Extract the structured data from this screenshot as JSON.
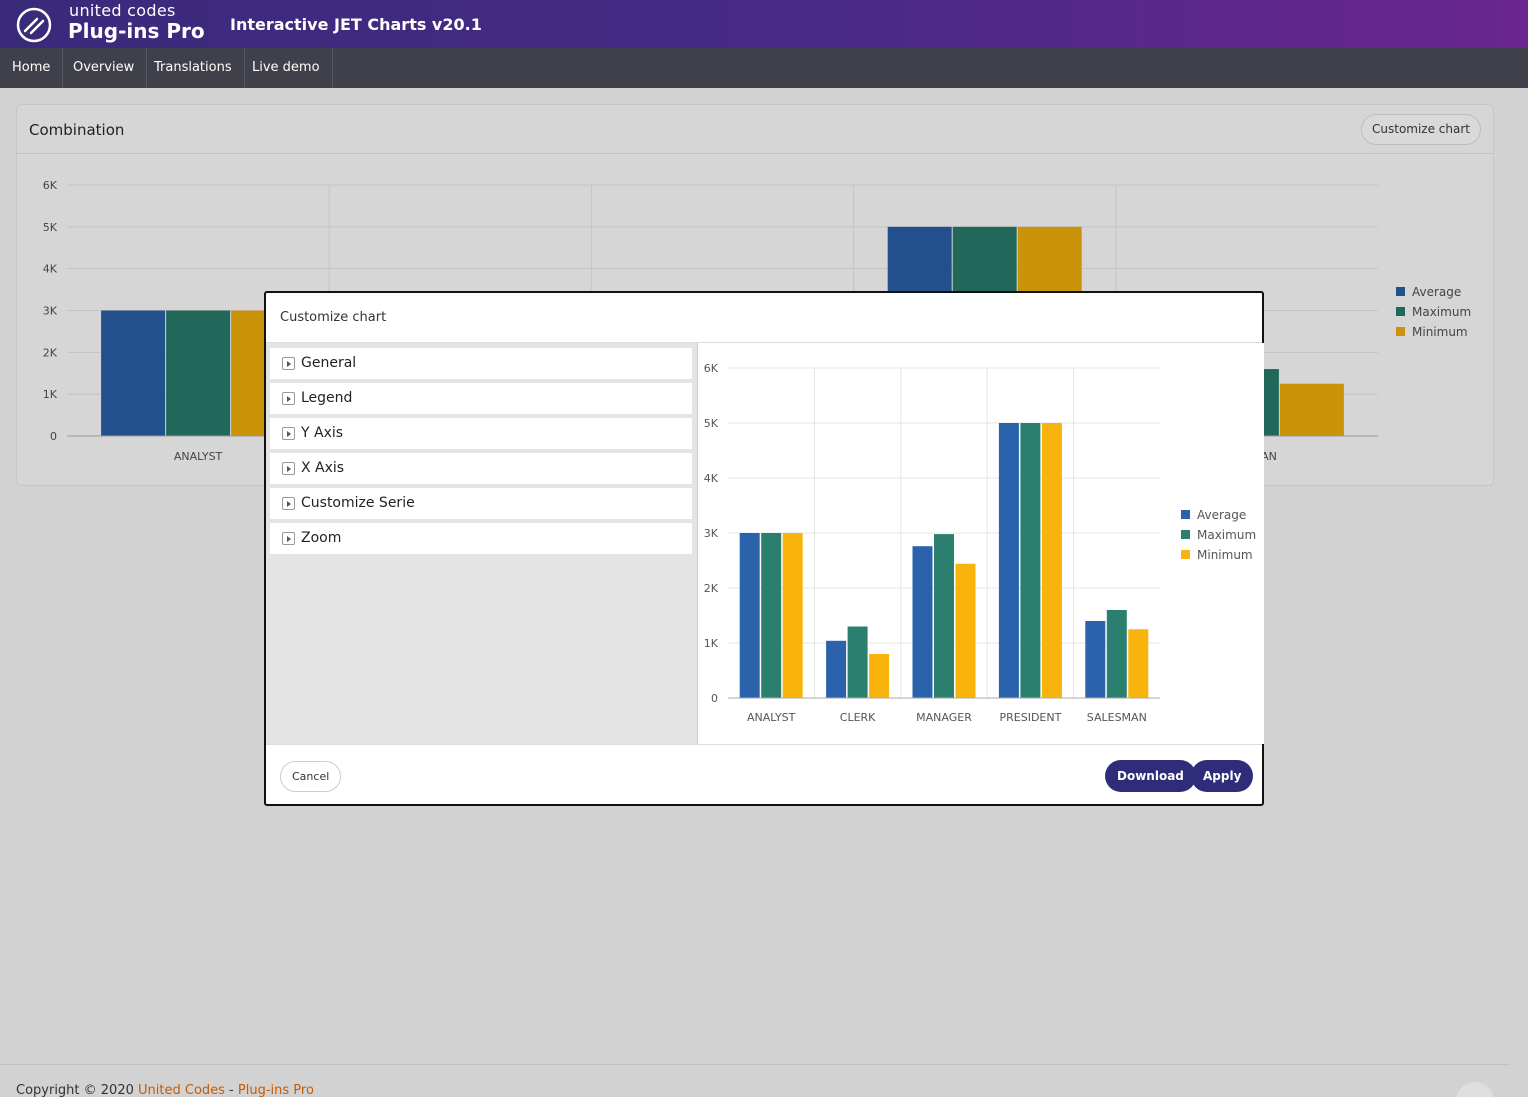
{
  "brand": {
    "line1": "united codes",
    "line2": "Plug-ins Pro"
  },
  "app_title": "Interactive JET Charts v20.1",
  "nav": [
    "Home",
    "Overview",
    "Translations",
    "Live demo"
  ],
  "region": {
    "title": "Combination",
    "customize_label": "Customize chart"
  },
  "modal": {
    "title": "Customize chart",
    "accordion": [
      "General",
      "Legend",
      "Y Axis",
      "X Axis",
      "Customize Serie",
      "Zoom"
    ],
    "cancel_label": "Cancel",
    "download_label": "Download",
    "apply_label": "Apply"
  },
  "footer": {
    "prefix": "Copyright © 2020 ",
    "link1": "United Codes",
    "separator": " - ",
    "link2": "Plug-ins Pro"
  },
  "colors": {
    "average": "#2a62ab",
    "maximum": "#2a7f6e",
    "minimum": "#f8b30c"
  },
  "chart_data": {
    "type": "bar",
    "categories": [
      "ANALYST",
      "CLERK",
      "MANAGER",
      "PRESIDENT",
      "SALESMAN"
    ],
    "series": [
      {
        "name": "Average",
        "values": [
          3000,
          1040,
          2760,
          5000,
          1400
        ]
      },
      {
        "name": "Maximum",
        "values": [
          3000,
          1300,
          2980,
          5000,
          1600
        ]
      },
      {
        "name": "Minimum",
        "values": [
          3000,
          800,
          2440,
          5000,
          1250
        ]
      }
    ],
    "yticks": [
      "0",
      "1K",
      "2K",
      "3K",
      "4K",
      "5K",
      "6K"
    ],
    "ylim": [
      0,
      6000
    ],
    "legend_position": "right",
    "grid": true
  }
}
